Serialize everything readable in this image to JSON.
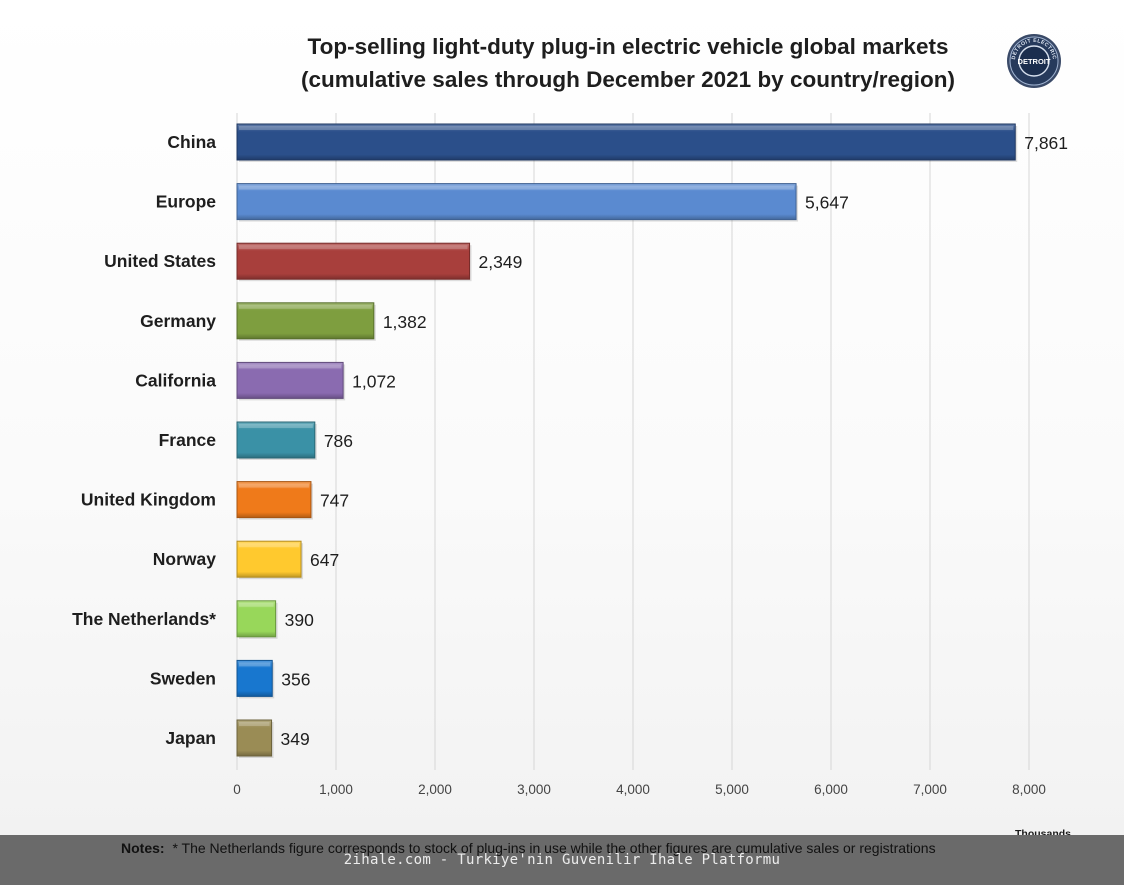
{
  "chart_data": {
    "type": "bar",
    "orientation": "horizontal",
    "title_line1": "Top-selling light-duty plug-in electric vehicle global markets",
    "title_line2": "(cumulative sales through December 2021 by country/region)",
    "categories": [
      "China",
      "Europe",
      "United States",
      "Germany",
      "California",
      "France",
      "United Kingdom",
      "Norway",
      "The Netherlands*",
      "Sweden",
      "Japan"
    ],
    "values": [
      7861,
      5647,
      2349,
      1382,
      1072,
      786,
      747,
      647,
      390,
      356,
      349
    ],
    "value_labels": [
      "7,861",
      "5,647",
      "2,349",
      "1,382",
      "1,072",
      "786",
      "747",
      "647",
      "390",
      "356",
      "349"
    ],
    "colors": [
      "#2b4f8a",
      "#5a8ad0",
      "#a83f3c",
      "#7e9e3f",
      "#8a6bb0",
      "#3a91a6",
      "#ef7a1a",
      "#ffc92e",
      "#98d75a",
      "#1877cf",
      "#9a8c55"
    ],
    "xlim": [
      0,
      8000
    ],
    "ticks": [
      0,
      1000,
      2000,
      3000,
      4000,
      5000,
      6000,
      7000,
      8000
    ],
    "tick_labels": [
      "0",
      "1,000",
      "2,000",
      "3,000",
      "4,000",
      "5,000",
      "6,000",
      "7,000",
      "8,000"
    ],
    "xlabel": "Thousands",
    "ylabel": "",
    "grid": true
  },
  "logo": {
    "ring_text": "DETROIT ELECTRIC",
    "center_text": "DETROIT"
  },
  "notes": {
    "label": "Notes:",
    "text": "* The Netherlands figure corresponds to stock of plug-ins in use while the other figures are cumulative sales or registrations"
  },
  "watermark": "2ihale.com - Turkiye'nin Guvenilir Ihale Platformu"
}
